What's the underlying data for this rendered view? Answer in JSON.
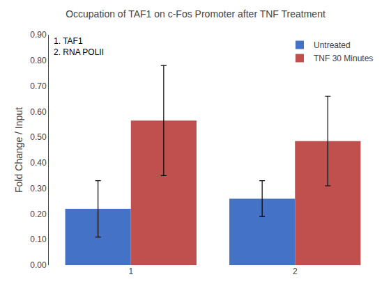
{
  "chart_data": {
    "type": "bar",
    "title": "Occupation of TAF1 on c-Fos Promoter after TNF Treatment",
    "ylabel": "Fold Change / Input",
    "categories": [
      1,
      2
    ],
    "series": [
      {
        "name": "Untreated",
        "color": "#4472C4",
        "values": [
          0.22,
          0.26
        ],
        "errors": [
          0.11,
          0.07
        ]
      },
      {
        "name": "TNF 30 Minutes",
        "color": "#C0504D",
        "values": [
          0.565,
          0.485
        ],
        "errors": [
          0.215,
          0.175
        ]
      }
    ],
    "ylim": [
      0.0,
      0.9
    ],
    "yticks": [
      {
        "value": 0.0,
        "label": "0.00"
      },
      {
        "value": 0.1,
        "label": "0.10"
      },
      {
        "value": 0.2,
        "label": "0.20"
      },
      {
        "value": 0.3,
        "label": "0.30"
      },
      {
        "value": 0.4,
        "label": "0.40"
      },
      {
        "value": 0.5,
        "label": "0.50"
      },
      {
        "value": 0.6,
        "label": "0.60"
      },
      {
        "value": 0.7,
        "label": "0.70"
      },
      {
        "value": 0.8,
        "label": "0.80"
      },
      {
        "value": 0.9,
        "label": "0.90"
      }
    ],
    "annotation": "1. TAF1\n2. RNA POLII",
    "legend": "upper right",
    "grid": false
  }
}
